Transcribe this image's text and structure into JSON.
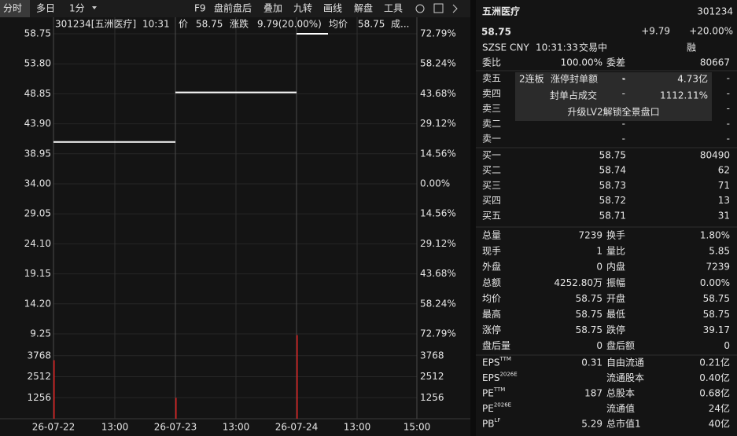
{
  "toolbar": {
    "tabs": [
      "分时",
      "多日",
      "1分"
    ],
    "tools": [
      "F9",
      "盘前盘后",
      "叠加",
      "九转",
      "画线",
      "解盘",
      "工具"
    ]
  },
  "chart": {
    "info": [
      {
        "text": "301234[五洲医疗]",
        "color": "#e6e6e6"
      },
      {
        "text": "10:31",
        "color": "#4aa3ff"
      },
      {
        "text": "价",
        "color": "#e6e6e6"
      },
      {
        "text": "58.75",
        "color": "#ff3b3b"
      },
      {
        "text": "涨跌",
        "color": "#e6e6e6"
      },
      {
        "text": "9.79(20.00%)",
        "color": "#ff3b3b"
      },
      {
        "text": "均价",
        "color": "#e6e6e6"
      },
      {
        "text": "58.75",
        "color": "#ff3b3b"
      },
      {
        "text": "成...",
        "color": "#e6e6e6"
      }
    ],
    "ylim": [
      9.25,
      58.75
    ],
    "yticks": [
      58.75,
      {
        "value": 53.8,
        "label": "53.80"
      },
      48.85,
      {
        "value": 43.9,
        "label": "43.90"
      },
      38.95,
      {
        "value": 34,
        "label": "34.00"
      },
      29.05,
      {
        "value": 24.1,
        "label": "24.10"
      },
      19.15,
      {
        "value": 14.2,
        "label": "14.20"
      },
      9.25
    ],
    "pct_ticks": [
      "72.79%",
      "58.24%",
      "43.68%",
      "29.12%",
      "14.56%",
      "0.00%",
      "14.56%",
      "29.12%",
      "43.68%",
      "58.24%",
      "72.79%"
    ],
    "xlabels": [
      "26-07-22",
      "13:00",
      "26-07-23",
      "13:00",
      "26-07-24",
      "13:00",
      "15:00"
    ],
    "price": {
      "color": "#ffffff",
      "values": [
        40.9,
        49.08,
        58.75
      ]
    },
    "vol_ylim": [
      0,
      4370
    ],
    "vol_yticks": [
      3768,
      2512,
      1256
    ],
    "volume": {
      "color": "#e02020",
      "values": [
        3500,
        1250,
        5000
      ]
    }
  },
  "quote": {
    "name": "五洲医疗",
    "code": "301234",
    "price": "58.75",
    "change": "+9.79",
    "pct": "+20.00%",
    "info": [
      "SZSE",
      "CNY",
      "10:31:33",
      "交易中"
    ],
    "tag": "融",
    "weibi": [
      "委比",
      "100.00%",
      "委差",
      "80667"
    ],
    "sells": [
      [
        "卖五",
        "-",
        "-"
      ],
      [
        "卖四",
        "-",
        "-"
      ],
      [
        "卖三",
        "-",
        "-"
      ],
      [
        "卖二",
        "-",
        "-"
      ],
      [
        "卖一",
        "-",
        "-"
      ]
    ],
    "buys": [
      [
        "买一",
        "58.75",
        "80490"
      ],
      [
        "买二",
        "58.74",
        "62"
      ],
      [
        "买三",
        "58.73",
        "71"
      ],
      [
        "买四",
        "58.72",
        "13"
      ],
      [
        "买五",
        "58.71",
        "31"
      ]
    ],
    "overlay": {
      "rows": [
        [
          "2连板",
          "涨停封单额",
          "-",
          "4.73亿"
        ],
        [
          "封单占成交",
          "1112.11%"
        ]
      ],
      "upgrade": "升级LV2解锁全景盘口"
    },
    "stats": [
      {
        "cells": [
          "总量",
          "7239",
          "换手",
          "1.80%"
        ],
        "colors": [
          "#e6e6e6",
          "#e6e6e6"
        ]
      },
      {
        "cells": [
          "现手",
          "1",
          "量比",
          "5.85"
        ],
        "colors": [
          "#e6e6e6",
          "#e6e6e6"
        ]
      },
      {
        "cells": [
          "外盘",
          "0",
          "内盘",
          "7239"
        ],
        "colors": [
          "#ff3b3b",
          "#1fbf4f"
        ]
      },
      {
        "cells": [
          "总额",
          "4252.80万",
          "振幅",
          "0.00%"
        ],
        "colors": [
          "#e6e6e6",
          "#e6e6e6"
        ]
      },
      {
        "cells": [
          "均价",
          "58.75",
          "开盘",
          "58.75"
        ],
        "colors": [
          "#ff3b3b",
          "#ff3b3b"
        ]
      },
      {
        "cells": [
          "最高",
          "58.75",
          "最低",
          "58.75"
        ],
        "colors": [
          "#ff3b3b",
          "#ff3b3b"
        ]
      },
      {
        "cells": [
          "涨停",
          "58.75",
          "跌停",
          "39.17"
        ],
        "colors": [
          "#ff3b3b",
          "#1fbf4f"
        ]
      },
      {
        "cells": [
          "盘后量",
          "0",
          "盘后额",
          "0"
        ],
        "colors": [
          "#e6e6e6",
          "#e6e6e6"
        ]
      }
    ],
    "fin": [
      {
        "label": "EPS",
        "sup": "TTM",
        "value": "0.31",
        "label2": "自由流通",
        "value2": "0.21亿"
      },
      {
        "label": "EPS",
        "sup": "2026E",
        "label2": "流通股本",
        "value2": "0.40亿"
      },
      {
        "label": "PE",
        "sup": "TTM",
        "value": "187",
        "label2": "总股本",
        "value2": "0.68亿"
      },
      {
        "label": "PE",
        "sup": "2026E",
        "label2": "流通值",
        "value2": "24亿"
      },
      {
        "label": "PB",
        "sup": "LF",
        "value": "5.29",
        "label2": "总市值1",
        "value2": "40亿"
      }
    ]
  }
}
